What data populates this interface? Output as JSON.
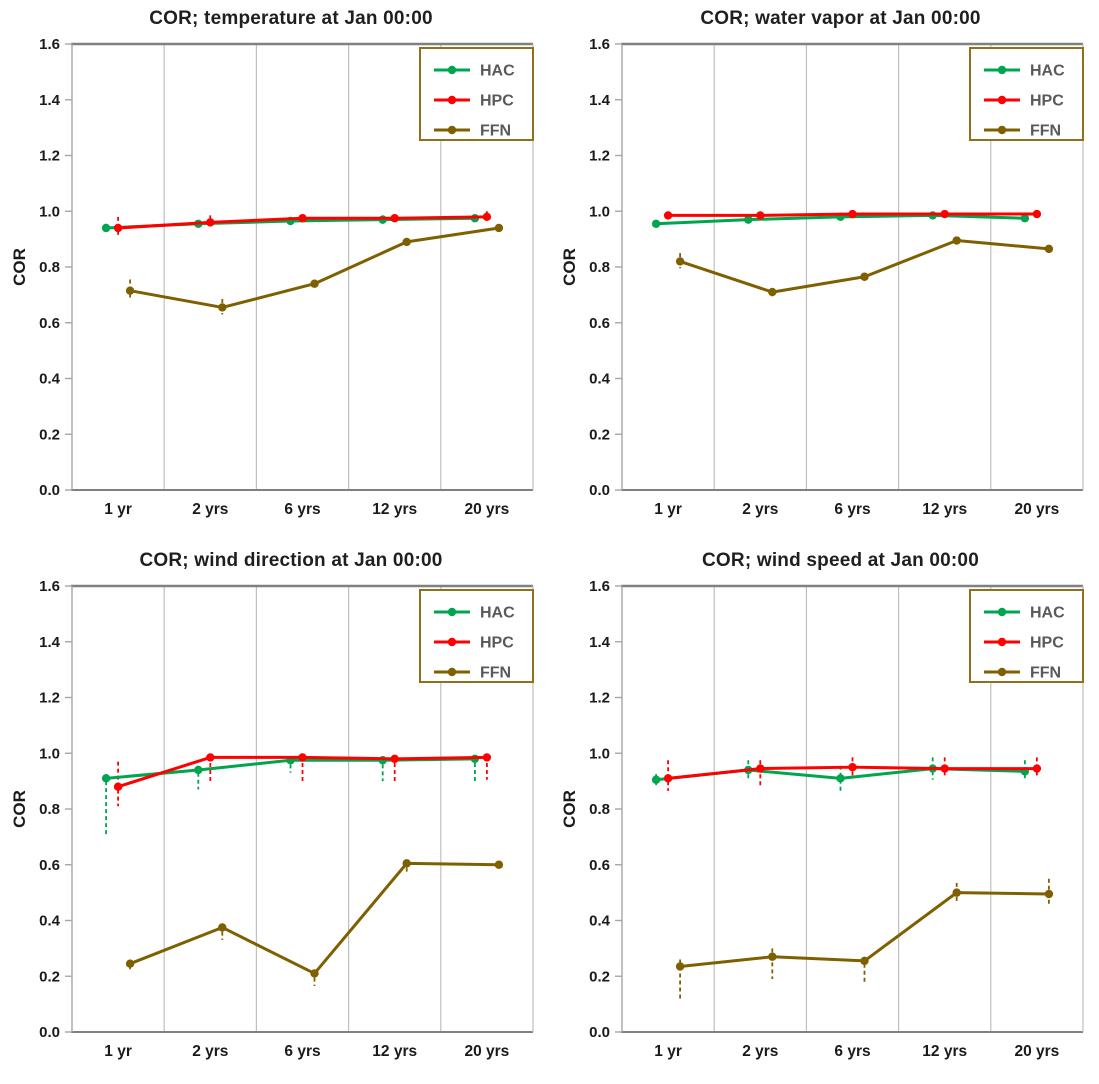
{
  "colors": {
    "background": "#ffffff",
    "title_text": "#1f1f1f",
    "axis_text": "#1a1a1a",
    "grid_line": "#bfbfbf",
    "plot_border_top": "#808080",
    "plot_border_bottom": "#808080",
    "axis_line": "#a6a6a6",
    "plot_border_right": "#bfbfbf",
    "legend_border": "#8f701d",
    "legend_text": "#595959",
    "hac": "#00a550",
    "hpc": "#ff0000",
    "ffn": "#7f6000"
  },
  "chart_data": [
    {
      "type": "line",
      "title": "COR; temperature at Jan 00:00",
      "ylabel": "COR",
      "xlabel": "",
      "categories": [
        "1 yr",
        "2 yrs",
        "6 yrs",
        "12 yrs",
        "20 yrs"
      ],
      "ylim": [
        0.0,
        1.6
      ],
      "ytick_step": 0.2,
      "grid": "vertical-category-boundaries",
      "legend_position": "top-right",
      "series": [
        {
          "name": "HAC",
          "color": "#00a550",
          "values": [
            0.94,
            0.955,
            0.965,
            0.97,
            0.975
          ],
          "err_lo": [
            0.925,
            0.945,
            0.955,
            0.955,
            0.965
          ],
          "err_hi": [
            0.955,
            0.965,
            0.975,
            0.985,
            0.985
          ]
        },
        {
          "name": "HPC",
          "color": "#ff0000",
          "values": [
            0.94,
            0.96,
            0.975,
            0.975,
            0.98
          ],
          "err_lo": [
            0.915,
            0.94,
            0.965,
            0.965,
            0.97
          ],
          "err_hi": [
            0.98,
            0.985,
            0.985,
            0.985,
            1.0
          ]
        },
        {
          "name": "FFN",
          "color": "#7f6000",
          "values": [
            0.715,
            0.655,
            0.74,
            0.89,
            0.94
          ],
          "err_lo": [
            0.68,
            0.63,
            0.73,
            0.88,
            0.93
          ],
          "err_hi": [
            0.755,
            0.685,
            0.75,
            0.9,
            0.95
          ]
        }
      ]
    },
    {
      "type": "line",
      "title": "COR; water vapor at Jan 00:00",
      "ylabel": "COR",
      "xlabel": "",
      "categories": [
        "1 yr",
        "2 yrs",
        "6 yrs",
        "12 yrs",
        "20 yrs"
      ],
      "ylim": [
        0.0,
        1.6
      ],
      "ytick_step": 0.2,
      "grid": "vertical-category-boundaries",
      "legend_position": "top-right",
      "series": [
        {
          "name": "HAC",
          "color": "#00a550",
          "values": [
            0.955,
            0.97,
            0.98,
            0.985,
            0.975
          ],
          "err_lo": [
            0.945,
            0.96,
            0.97,
            0.975,
            0.965
          ],
          "err_hi": [
            0.965,
            0.985,
            0.99,
            0.995,
            0.985
          ]
        },
        {
          "name": "HPC",
          "color": "#ff0000",
          "values": [
            0.985,
            0.985,
            0.99,
            0.99,
            0.99
          ],
          "err_lo": [
            0.975,
            0.975,
            0.98,
            0.98,
            0.98
          ],
          "err_hi": [
            0.995,
            0.995,
            1.0,
            1.0,
            1.0
          ]
        },
        {
          "name": "FFN",
          "color": "#7f6000",
          "values": [
            0.82,
            0.71,
            0.765,
            0.895,
            0.865
          ],
          "err_lo": [
            0.795,
            0.695,
            0.755,
            0.885,
            0.855
          ],
          "err_hi": [
            0.85,
            0.725,
            0.775,
            0.905,
            0.875
          ]
        }
      ]
    },
    {
      "type": "line",
      "title": "COR; wind direction at Jan 00:00",
      "ylabel": "COR",
      "xlabel": "",
      "categories": [
        "1 yr",
        "2 yrs",
        "6 yrs",
        "12 yrs",
        "20 yrs"
      ],
      "ylim": [
        0.0,
        1.6
      ],
      "ytick_step": 0.2,
      "grid": "vertical-category-boundaries",
      "legend_position": "top-right",
      "series": [
        {
          "name": "HAC",
          "color": "#00a550",
          "values": [
            0.91,
            0.94,
            0.975,
            0.975,
            0.98
          ],
          "err_lo": [
            0.7,
            0.87,
            0.93,
            0.9,
            0.9
          ],
          "err_hi": [
            0.925,
            0.955,
            0.985,
            0.985,
            0.99
          ]
        },
        {
          "name": "HPC",
          "color": "#ff0000",
          "values": [
            0.88,
            0.985,
            0.985,
            0.98,
            0.985
          ],
          "err_lo": [
            0.81,
            0.9,
            0.9,
            0.9,
            0.905
          ],
          "err_hi": [
            0.97,
            0.99,
            0.99,
            0.99,
            0.99
          ]
        },
        {
          "name": "FFN",
          "color": "#7f6000",
          "values": [
            0.245,
            0.375,
            0.21,
            0.605,
            0.6
          ],
          "err_lo": [
            0.225,
            0.33,
            0.165,
            0.565,
            0.585
          ],
          "err_hi": [
            0.26,
            0.385,
            0.22,
            0.615,
            0.61
          ]
        }
      ]
    },
    {
      "type": "line",
      "title": "COR; wind speed at Jan 00:00",
      "ylabel": "COR",
      "xlabel": "",
      "categories": [
        "1 yr",
        "2 yrs",
        "6 yrs",
        "12 yrs",
        "20 yrs"
      ],
      "ylim": [
        0.0,
        1.6
      ],
      "ytick_step": 0.2,
      "grid": "vertical-category-boundaries",
      "legend_position": "top-right",
      "series": [
        {
          "name": "HAC",
          "color": "#00a550",
          "values": [
            0.905,
            0.94,
            0.91,
            0.945,
            0.935
          ],
          "err_lo": [
            0.885,
            0.9,
            0.865,
            0.905,
            0.9
          ],
          "err_hi": [
            0.925,
            0.975,
            0.955,
            0.985,
            0.975
          ]
        },
        {
          "name": "HPC",
          "color": "#ff0000",
          "values": [
            0.91,
            0.945,
            0.95,
            0.945,
            0.945
          ],
          "err_lo": [
            0.865,
            0.88,
            0.91,
            0.91,
            0.915
          ],
          "err_hi": [
            0.975,
            0.975,
            0.985,
            0.985,
            0.985
          ]
        },
        {
          "name": "FFN",
          "color": "#7f6000",
          "values": [
            0.235,
            0.27,
            0.255,
            0.5,
            0.495
          ],
          "err_lo": [
            0.11,
            0.19,
            0.18,
            0.47,
            0.45
          ],
          "err_hi": [
            0.26,
            0.3,
            0.27,
            0.535,
            0.55
          ]
        }
      ]
    }
  ]
}
